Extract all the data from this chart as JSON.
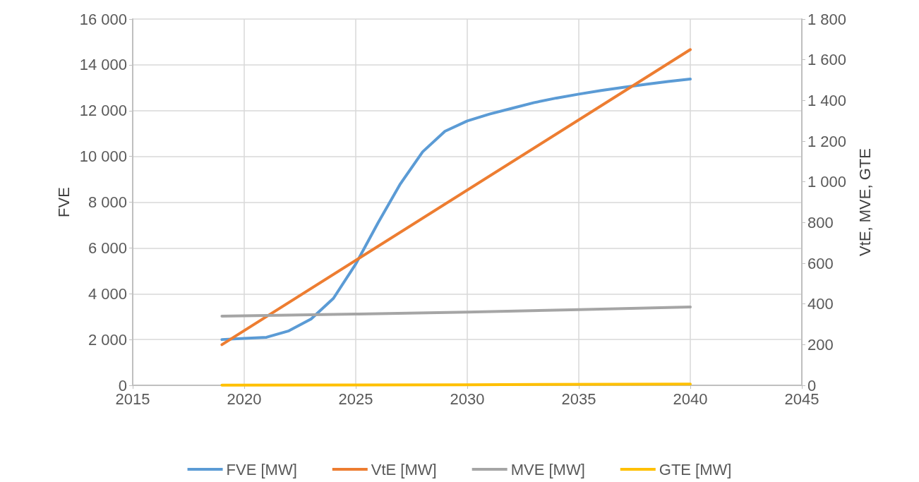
{
  "chart_data": {
    "type": "line",
    "ylabel": "FVE",
    "y2label": "VtE, MVE, GTE",
    "xlim": [
      2015,
      2045
    ],
    "xticks": [
      2015,
      2020,
      2025,
      2030,
      2035,
      2040,
      2045
    ],
    "ylim": [
      0,
      16000
    ],
    "yticks": [
      0,
      {
        "value": 2000,
        "label": "2 000"
      },
      {
        "value": 4000,
        "label": "4 000"
      },
      {
        "value": 6000,
        "label": "6 000"
      },
      {
        "value": 8000,
        "label": "8 000"
      },
      {
        "value": 10000,
        "label": "10 000"
      },
      {
        "value": 12000,
        "label": "12 000"
      },
      {
        "value": 14000,
        "label": "14 000"
      },
      {
        "value": 16000,
        "label": "16 000"
      }
    ],
    "y2lim": [
      0,
      1800
    ],
    "y2ticks": [
      0,
      200,
      400,
      600,
      800,
      {
        "value": 1000,
        "label": "1 000"
      },
      {
        "value": 1200,
        "label": "1 200"
      },
      {
        "value": 1400,
        "label": "1 400"
      },
      {
        "value": 1600,
        "label": "1 600"
      },
      {
        "value": 1800,
        "label": "1 800"
      }
    ],
    "grid": true,
    "legend": "bottom",
    "marker": "none",
    "line_style": "solid",
    "series": [
      {
        "name": "FVE [MW]",
        "color": "#5b9bd5",
        "x": [
          2019,
          2020,
          2021,
          2022,
          2023,
          2024,
          2025,
          2026,
          2027,
          2028,
          2029,
          2030,
          2031,
          2032,
          2033,
          2034,
          2035,
          2036,
          2037,
          2038,
          2039,
          2040
        ],
        "values": [
          2000,
          2050,
          2100,
          2380,
          2900,
          3800,
          5300,
          7100,
          8800,
          10200,
          11100,
          11550,
          11850,
          12100,
          12350,
          12550,
          12720,
          12880,
          13020,
          13150,
          13270,
          13380
        ]
      },
      {
        "name": "VtE [MW]",
        "color": "#ed7d31",
        "axis": "y2",
        "x": [
          2019,
          2040
        ],
        "values": [
          200,
          1650
        ]
      },
      {
        "name": "MVE [MW]",
        "color": "#a5a5a5",
        "axis": "y2",
        "x": [
          2019,
          2025,
          2030,
          2035,
          2040
        ],
        "values": [
          340,
          350,
          360,
          372,
          385
        ]
      },
      {
        "name": "GTE [MW]",
        "color": "#ffc000",
        "axis": "y2",
        "x": [
          2019,
          2030,
          2040
        ],
        "values": [
          1,
          3,
          6
        ]
      }
    ]
  }
}
